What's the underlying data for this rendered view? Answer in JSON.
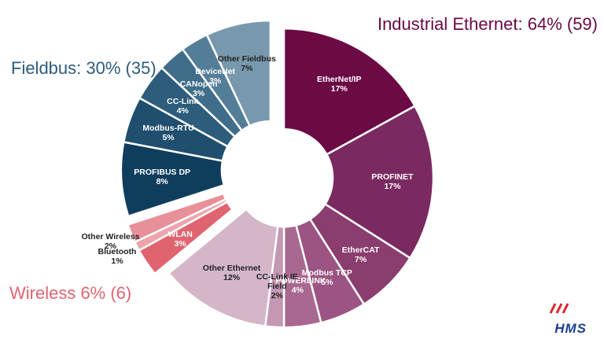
{
  "chart_data": {
    "type": "pie",
    "donut": true,
    "logo": "HMS",
    "groups": [
      {
        "label": "Industrial Ethernet: 64% (59)",
        "color": "#6b0a45",
        "categories": [
          "EtherNet/IP",
          "PROFINET",
          "EtherCAT",
          "Modbus TCP",
          "POWERLINK",
          "CC-Link IE Field",
          "Other Ethernet"
        ],
        "values": [
          17,
          17,
          7,
          5,
          4,
          2,
          12
        ],
        "value_labels": [
          "17%",
          "17%",
          "7%",
          "5%",
          "4%",
          "2%",
          "12%"
        ],
        "colors": [
          "#6b0a45",
          "#7a2a60",
          "#8a3d6e",
          "#9b5483",
          "#a96890",
          "#c497b2",
          "#d4b6c8"
        ]
      },
      {
        "label": "Wireless 6% (6)",
        "color": "#e06470",
        "categories": [
          "WLAN",
          "Bluetooth",
          "Other Wireless"
        ],
        "values": [
          3,
          1,
          2
        ],
        "value_labels": [
          "3%",
          "1%",
          "2%"
        ],
        "colors": [
          "#e06470",
          "#eea4ab",
          "#e8909a"
        ]
      },
      {
        "label": "Fieldbus: 30% (35)",
        "color": "#2d5c7c",
        "categories": [
          "PROFIBUS DP",
          "Modbus-RTU",
          "CC-Link",
          "CANopen",
          "DeviceNet",
          "Other Fieldbus"
        ],
        "values": [
          8,
          5,
          4,
          3,
          3,
          7
        ],
        "value_labels": [
          "8%",
          "5%",
          "4%",
          "3%",
          "3%",
          "7%"
        ],
        "colors": [
          "#0f3d5e",
          "#1f4e6e",
          "#2d5c7c",
          "#3f6d8a",
          "#537e98",
          "#7898ad"
        ]
      }
    ]
  }
}
